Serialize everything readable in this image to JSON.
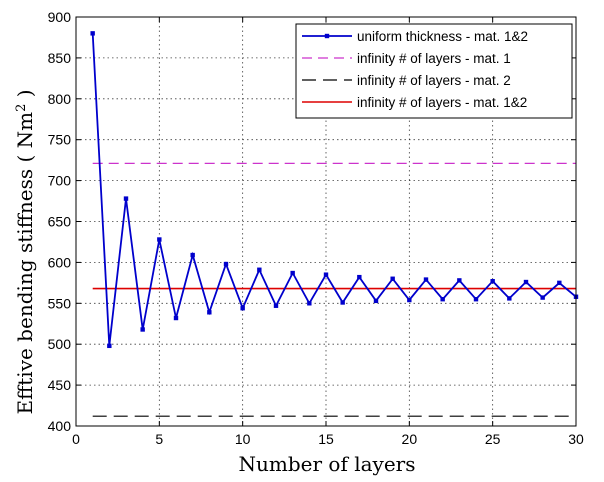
{
  "chart_data": {
    "type": "line",
    "title": "",
    "xlabel": "Number of layers",
    "ylabel": "Efftive bending stiffness ( Nm",
    "ylabel_sup": "2",
    "ylabel_close": " )",
    "xlim": [
      0,
      30
    ],
    "ylim": [
      400,
      900
    ],
    "xticks": [
      0,
      5,
      10,
      15,
      20,
      25,
      30
    ],
    "yticks": [
      400,
      450,
      500,
      550,
      600,
      650,
      700,
      750,
      800,
      850,
      900
    ],
    "grid": true,
    "legend_position": "top-right",
    "series": [
      {
        "name": "uniform thickness - mat. 1&2",
        "color": "#0000cc",
        "style": "solid-marker",
        "x": [
          1,
          2,
          3,
          4,
          5,
          6,
          7,
          8,
          9,
          10,
          11,
          12,
          13,
          14,
          15,
          16,
          17,
          18,
          19,
          20,
          21,
          22,
          23,
          24,
          25,
          26,
          27,
          28,
          29,
          30
        ],
        "y": [
          880,
          498,
          678,
          518,
          628,
          532,
          609,
          539,
          598,
          544,
          591,
          547,
          587,
          550,
          585,
          551,
          582,
          553,
          580,
          554,
          579,
          555,
          578,
          555,
          577,
          556,
          576,
          557,
          575,
          558
        ]
      },
      {
        "name": "infinity # of layers - mat. 1",
        "color": "#cc33cc",
        "style": "dashed",
        "x": [
          1,
          30
        ],
        "y": [
          721,
          721
        ]
      },
      {
        "name": "infinity # of layers - mat. 2",
        "color": "#000000",
        "style": "dashed",
        "x": [
          1,
          30
        ],
        "y": [
          412,
          412
        ]
      },
      {
        "name": "infinity # of layers - mat. 1&2",
        "color": "#dd0000",
        "style": "solid",
        "x": [
          1,
          30
        ],
        "y": [
          568,
          568
        ]
      }
    ]
  }
}
